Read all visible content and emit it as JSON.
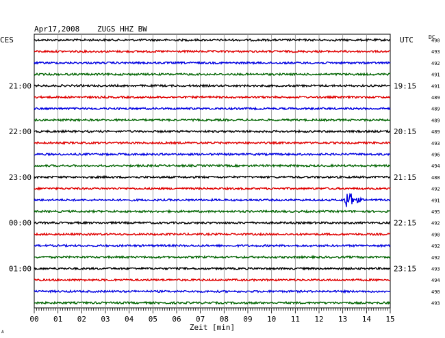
{
  "header": {
    "date": "Apr17,2008",
    "station": "ZUGS HHZ BW",
    "left_tz": "CES",
    "right_tz": "UTC",
    "dc_label": "DC"
  },
  "footer": {
    "xlabel": "Zeit [min]",
    "corner_mark": "A"
  },
  "chart_data": {
    "type": "line",
    "title": "Apr17,2008  ZUGS HHZ BW",
    "xlabel": "Zeit [min]",
    "xlim": [
      0,
      15
    ],
    "x_ticks": [
      "00",
      "01",
      "02",
      "03",
      "04",
      "05",
      "06",
      "07",
      "08",
      "09",
      "10",
      "11",
      "12",
      "13",
      "14",
      "15"
    ],
    "grid": true,
    "trace_colors": [
      "#000000",
      "#e00000",
      "#0000e0",
      "#006400"
    ],
    "left_time_labels": [
      {
        "trace": 4,
        "label": "21:00"
      },
      {
        "trace": 8,
        "label": "22:00"
      },
      {
        "trace": 12,
        "label": "23:00"
      },
      {
        "trace": 16,
        "label": "00:00"
      },
      {
        "trace": 20,
        "label": "01:00"
      }
    ],
    "right_time_labels": [
      {
        "trace": 4,
        "label": "19:15"
      },
      {
        "trace": 8,
        "label": "20:15"
      },
      {
        "trace": 12,
        "label": "21:15"
      },
      {
        "trace": 16,
        "label": "22:15"
      },
      {
        "trace": 20,
        "label": "23:15"
      }
    ],
    "dc_values": [
      "490",
      "493",
      "492",
      "491",
      "491",
      "489",
      "489",
      "489",
      "489",
      "493",
      "496",
      "494",
      "488",
      "492",
      "491",
      "495",
      "492",
      "490",
      "492",
      "492",
      "493",
      "494",
      "490",
      "493"
    ],
    "event": {
      "trace": 14,
      "minute": 13.2,
      "description_visible": false
    }
  }
}
